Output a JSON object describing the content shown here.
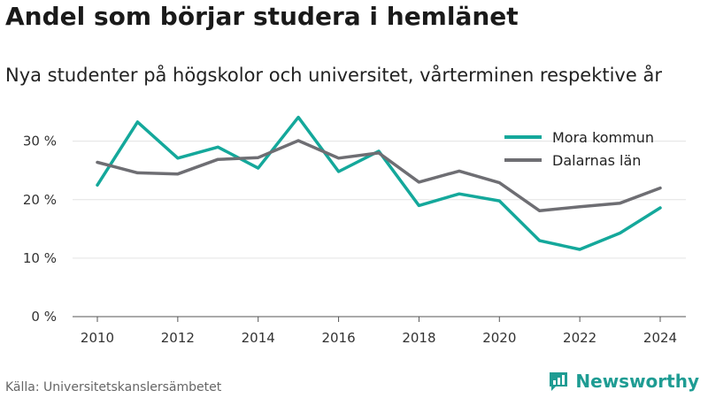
{
  "title": "Andel som börjar studera i hemlänet",
  "subtitle": "Nya studenter på högskolor och universitet, vårterminen respektive år",
  "source": "Källa: Universitetskanslersämbetet",
  "brand": {
    "name": "Newsworthy",
    "icon": "newsworthy-logo-icon",
    "color": "#1e9c93"
  },
  "chart_data": {
    "type": "line",
    "title": "Andel som börjar studera i hemlänet",
    "subtitle": "Nya studenter på högskolor och universitet, vårterminen respektive år",
    "x": [
      2010,
      2011,
      2012,
      2013,
      2014,
      2015,
      2016,
      2017,
      2018,
      2019,
      2020,
      2021,
      2022,
      2023,
      2024
    ],
    "x_ticks": [
      "2010",
      "2012",
      "2014",
      "2016",
      "2018",
      "2020",
      "2022",
      "2024"
    ],
    "y_ticks": [
      "0 %",
      "10 %",
      "20 %",
      "30 %"
    ],
    "ylim": [
      0,
      36
    ],
    "grid": true,
    "legend_position": "top-right",
    "series": [
      {
        "name": "Mora kommun",
        "color": "#14a89b",
        "values": [
          22.5,
          33.3,
          27.1,
          29.0,
          25.4,
          34.1,
          24.8,
          28.3,
          19.0,
          21.0,
          19.8,
          13.0,
          11.5,
          14.3,
          18.6
        ]
      },
      {
        "name": "Dalarnas län",
        "color": "#6e6e73",
        "values": [
          26.4,
          24.6,
          24.4,
          26.9,
          27.2,
          30.1,
          27.1,
          28.0,
          23.0,
          24.9,
          22.9,
          18.1,
          18.8,
          19.4,
          22.0
        ]
      }
    ]
  }
}
